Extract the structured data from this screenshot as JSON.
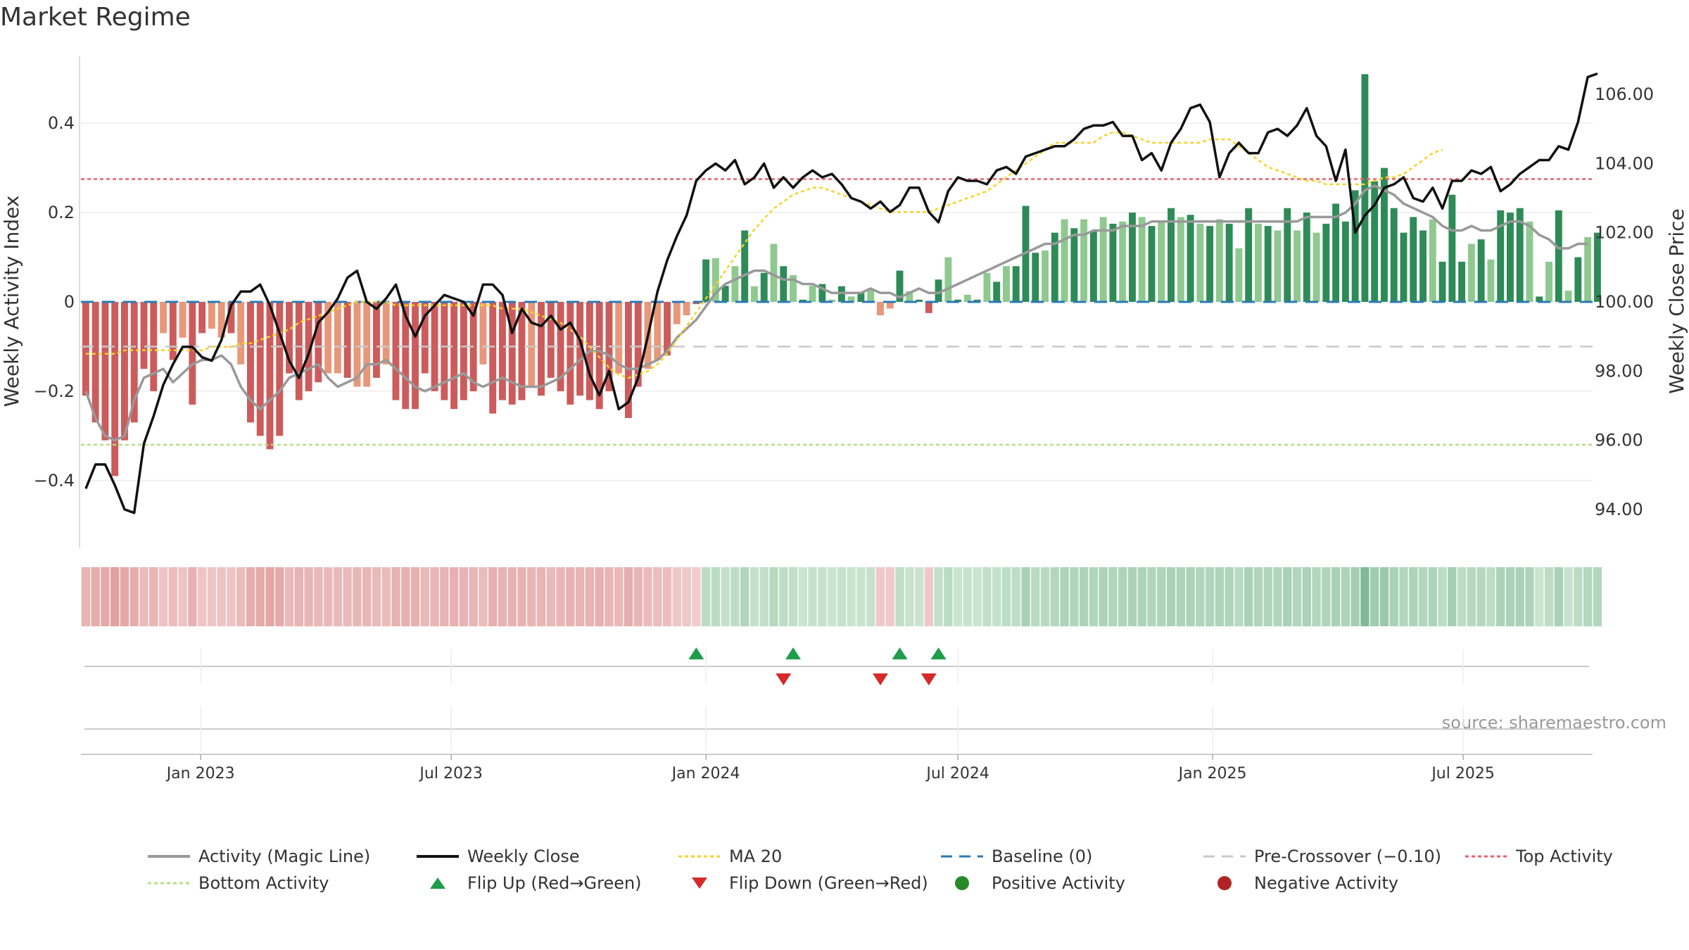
{
  "page": {
    "title": "Market Regime",
    "source": "source: sharemaestro.com"
  },
  "chart_data": {
    "type": "bar",
    "title": "Market Regime",
    "ylabel_left": "Weekly Activity Index",
    "ylabel_right": "Weekly Close Price",
    "left_axis": {
      "ylim": [
        -0.55,
        0.55
      ],
      "ticks": [
        -0.4,
        -0.2,
        0,
        0.2,
        0.4
      ],
      "tick_labels": [
        "−0.4",
        "−0.2",
        "0",
        "0.2",
        "0.4"
      ]
    },
    "right_axis": {
      "ylim": [
        92.9,
        107.1
      ],
      "ticks": [
        94,
        96,
        98,
        100,
        102,
        104,
        106
      ],
      "tick_labels": [
        "94.00",
        "96.00",
        "98.00",
        "100.00",
        "102.00",
        "104.00",
        "106.00"
      ]
    },
    "x_axis": {
      "start": "2022-10-10",
      "weeks": 156,
      "ticks": [
        "2023-01-01",
        "2023-07-01",
        "2024-01-01",
        "2024-07-01",
        "2025-01-01",
        "2025-07-01"
      ],
      "tick_labels": [
        "Jan 2023",
        "Jul 2023",
        "Jan 2024",
        "Jul 2024",
        "Jan 2025",
        "Jul 2025"
      ]
    },
    "reference_lines": {
      "top_activity": 0.275,
      "bottom_activity": -0.32,
      "pre_crossover": -0.1,
      "baseline": 0
    },
    "activity": [
      -0.2,
      -0.26,
      -0.3,
      -0.31,
      -0.3,
      -0.22,
      -0.17,
      -0.16,
      -0.15,
      -0.18,
      -0.16,
      -0.14,
      -0.13,
      -0.13,
      -0.12,
      -0.14,
      -0.19,
      -0.22,
      -0.24,
      -0.22,
      -0.2,
      -0.17,
      -0.16,
      -0.15,
      -0.14,
      -0.17,
      -0.19,
      -0.18,
      -0.17,
      -0.14,
      -0.14,
      -0.13,
      -0.15,
      -0.17,
      -0.19,
      -0.2,
      -0.19,
      -0.18,
      -0.17,
      -0.16,
      -0.18,
      -0.19,
      -0.18,
      -0.17,
      -0.18,
      -0.19,
      -0.19,
      -0.19,
      -0.18,
      -0.17,
      -0.15,
      -0.13,
      -0.11,
      -0.11,
      -0.12,
      -0.14,
      -0.15,
      -0.15,
      -0.14,
      -0.13,
      -0.11,
      -0.08,
      -0.06,
      -0.04,
      -0.01,
      0.02,
      0.04,
      0.05,
      0.06,
      0.07,
      0.07,
      0.06,
      0.05,
      0.05,
      0.04,
      0.04,
      0.03,
      0.02,
      0.02,
      0.02,
      0.02,
      0.03,
      0.02,
      0.02,
      0.01,
      0.02,
      0.03,
      0.02,
      0.02,
      0.03,
      0.04,
      0.05,
      0.06,
      0.07,
      0.08,
      0.09,
      0.1,
      0.11,
      0.12,
      0.13,
      0.13,
      0.14,
      0.15,
      0.15,
      0.16,
      0.16,
      0.16,
      0.17,
      0.17,
      0.17,
      0.18,
      0.18,
      0.18,
      0.18,
      0.18,
      0.18,
      0.18,
      0.18,
      0.18,
      0.18,
      0.18,
      0.18,
      0.18,
      0.18,
      0.18,
      0.18,
      0.19,
      0.19,
      0.19,
      0.19,
      0.2,
      0.22,
      0.25,
      0.26,
      0.25,
      0.24,
      0.22,
      0.21,
      0.2,
      0.19,
      0.17,
      0.16,
      0.16,
      0.17,
      0.16,
      0.16,
      0.17,
      0.18,
      0.18,
      0.17,
      0.15,
      0.14,
      0.12,
      0.12,
      0.13,
      0.13
    ],
    "weekly_close": [
      94.6,
      95.3,
      95.3,
      94.7,
      94.0,
      93.9,
      95.9,
      96.7,
      97.6,
      98.2,
      98.7,
      98.7,
      98.4,
      98.3,
      98.9,
      99.9,
      100.3,
      100.3,
      100.5,
      99.9,
      99.1,
      98.3,
      97.8,
      98.5,
      99.4,
      99.7,
      100.1,
      100.7,
      100.9,
      100.0,
      99.8,
      100.1,
      100.5,
      99.6,
      99.0,
      99.6,
      99.9,
      100.2,
      100.1,
      100.0,
      99.6,
      100.5,
      100.5,
      100.2,
      99.1,
      99.8,
      99.4,
      99.3,
      99.6,
      99.2,
      99.4,
      98.9,
      97.9,
      97.3,
      98.0,
      96.9,
      97.1,
      97.8,
      99.0,
      100.3,
      101.2,
      101.9,
      102.5,
      103.5,
      103.8,
      104.0,
      103.8,
      104.1,
      103.4,
      103.6,
      104.0,
      103.3,
      103.6,
      103.3,
      103.6,
      103.8,
      103.6,
      103.7,
      103.4,
      103.0,
      102.9,
      102.7,
      102.9,
      102.6,
      102.8,
      103.3,
      103.3,
      102.6,
      102.3,
      103.2,
      103.6,
      103.5,
      103.5,
      103.4,
      103.8,
      103.9,
      103.7,
      104.2,
      104.3,
      104.4,
      104.5,
      104.5,
      104.7,
      105.0,
      105.1,
      105.1,
      105.2,
      104.8,
      104.8,
      104.1,
      104.3,
      103.8,
      104.6,
      105.0,
      105.6,
      105.7,
      105.2,
      103.6,
      104.3,
      104.6,
      104.3,
      104.3,
      104.9,
      105.0,
      104.8,
      105.1,
      105.6,
      104.8,
      104.5,
      103.5,
      104.4,
      102.0,
      102.5,
      102.8,
      103.3,
      103.4,
      103.6,
      103.0,
      102.9,
      103.3,
      102.7,
      103.5,
      103.5,
      103.8,
      103.7,
      103.9,
      103.2,
      103.4,
      103.7,
      103.9,
      104.1,
      104.1,
      104.5,
      104.4,
      105.2,
      106.5,
      106.6
    ],
    "ma20": [
      98.5,
      98.5,
      98.5,
      98.5,
      98.6,
      98.6,
      98.6,
      98.6,
      98.6,
      98.6,
      98.6,
      98.6,
      98.6,
      98.7,
      98.7,
      98.7,
      98.8,
      98.8,
      98.9,
      99.0,
      99.1,
      99.2,
      99.4,
      99.5,
      99.6,
      99.7,
      99.8,
      99.9,
      100.0,
      100.0,
      100.0,
      100.0,
      99.9,
      99.9,
      99.9,
      99.9,
      99.9,
      99.9,
      99.9,
      99.9,
      99.9,
      99.9,
      99.9,
      99.8,
      99.8,
      99.8,
      99.7,
      99.6,
      99.5,
      99.4,
      99.2,
      99.0,
      98.7,
      98.4,
      98.1,
      97.9,
      97.8,
      97.9,
      98.0,
      98.2,
      98.5,
      98.9,
      99.3,
      99.7,
      100.1,
      100.5,
      100.9,
      101.3,
      101.7,
      102.1,
      102.4,
      102.7,
      102.9,
      103.1,
      103.2,
      103.3,
      103.3,
      103.2,
      103.1,
      103.0,
      102.9,
      102.8,
      102.7,
      102.6,
      102.6,
      102.6,
      102.6,
      102.6,
      102.7,
      102.8,
      102.9,
      103.0,
      103.1,
      103.2,
      103.4,
      103.6,
      103.8,
      104.0,
      104.2,
      104.4,
      104.6,
      104.6,
      104.6,
      104.6,
      104.6,
      104.8,
      104.9,
      104.9,
      104.8,
      104.7,
      104.6,
      104.6,
      104.6,
      104.6,
      104.6,
      104.6,
      104.7,
      104.7,
      104.7,
      104.5,
      104.3,
      104.1,
      103.9,
      103.8,
      103.7,
      103.6,
      103.5,
      103.5,
      103.4,
      103.4,
      103.4,
      103.4,
      103.4,
      103.5,
      103.6,
      103.6,
      103.7,
      103.9,
      104.1,
      104.3,
      104.4
    ],
    "histogram": [
      -0.21,
      -0.27,
      -0.31,
      -0.39,
      -0.31,
      -0.27,
      -0.15,
      -0.2,
      -0.07,
      -0.13,
      -0.08,
      -0.23,
      -0.07,
      -0.06,
      -0.08,
      -0.07,
      -0.14,
      -0.27,
      -0.3,
      -0.33,
      -0.3,
      -0.16,
      -0.22,
      -0.2,
      -0.18,
      -0.16,
      -0.16,
      -0.17,
      -0.19,
      -0.19,
      -0.17,
      -0.14,
      -0.22,
      -0.24,
      -0.24,
      -0.16,
      -0.2,
      -0.22,
      -0.24,
      -0.22,
      -0.2,
      -0.14,
      -0.25,
      -0.22,
      -0.23,
      -0.22,
      -0.19,
      -0.21,
      -0.17,
      -0.2,
      -0.23,
      -0.21,
      -0.22,
      -0.24,
      -0.2,
      -0.16,
      -0.26,
      -0.19,
      -0.15,
      -0.13,
      -0.12,
      -0.05,
      -0.03,
      -0.005,
      0.095,
      0.098,
      0.036,
      0.08,
      0.16,
      0.035,
      0.065,
      0.13,
      0.08,
      0.06,
      0.005,
      0.036,
      0.04,
      0.005,
      0.035,
      0.012,
      0.02,
      0.03,
      -0.03,
      -0.015,
      0.07,
      0.024,
      0.005,
      -0.025,
      0.05,
      0.1,
      0.005,
      0.016,
      0.005,
      0.065,
      0.045,
      0.08,
      0.08,
      0.215,
      0.11,
      0.115,
      0.155,
      0.185,
      0.165,
      0.185,
      0.16,
      0.19,
      0.175,
      0.18,
      0.2,
      0.19,
      0.17,
      0.18,
      0.21,
      0.19,
      0.195,
      0.175,
      0.17,
      0.185,
      0.175,
      0.12,
      0.21,
      0.175,
      0.17,
      0.16,
      0.21,
      0.16,
      0.2,
      0.155,
      0.175,
      0.22,
      0.18,
      0.25,
      0.51,
      0.27,
      0.3,
      0.21,
      0.155,
      0.19,
      0.16,
      0.185,
      0.09,
      0.24,
      0.09,
      0.13,
      0.14,
      0.095,
      0.205,
      0.2,
      0.21,
      0.18,
      0.012,
      0.09,
      0.205,
      0.025,
      0.1,
      0.145,
      0.155
    ],
    "flip_up_weeks": [
      63,
      73,
      84,
      88
    ],
    "flip_down_weeks": [
      72,
      82,
      87
    ],
    "series": [
      {
        "name": "Activity (Magic Line)"
      },
      {
        "name": "Weekly Close"
      },
      {
        "name": "MA 20"
      },
      {
        "name": "Baseline (0)"
      },
      {
        "name": "Pre-Crossover (−0.10)"
      },
      {
        "name": "Top Activity"
      },
      {
        "name": "Bottom Activity"
      },
      {
        "name": "Flip Up (Red→Green)"
      },
      {
        "name": "Flip Down (Green→Red)"
      },
      {
        "name": "Positive Activity"
      },
      {
        "name": "Negative Activity"
      }
    ],
    "colors": {
      "activity_line": "#999999",
      "close_line": "#111111",
      "ma20": "#f5d328",
      "baseline": "#2a7ab5",
      "pre_crossover": "#c8c8c8",
      "top_activity": "#e8606e",
      "bottom_activity": "#b7dd86",
      "flip_up": "#1f9d4a",
      "flip_down": "#d62a2a",
      "positive_strong": "#2e8b57",
      "positive_weak": "#8fc98f",
      "negative_strong": "#cc5c5c",
      "negative_weak": "#e8987a",
      "positive_dot": "#2a8a2a",
      "negative_dot": "#b22424"
    },
    "legend_placement": "bottom"
  }
}
